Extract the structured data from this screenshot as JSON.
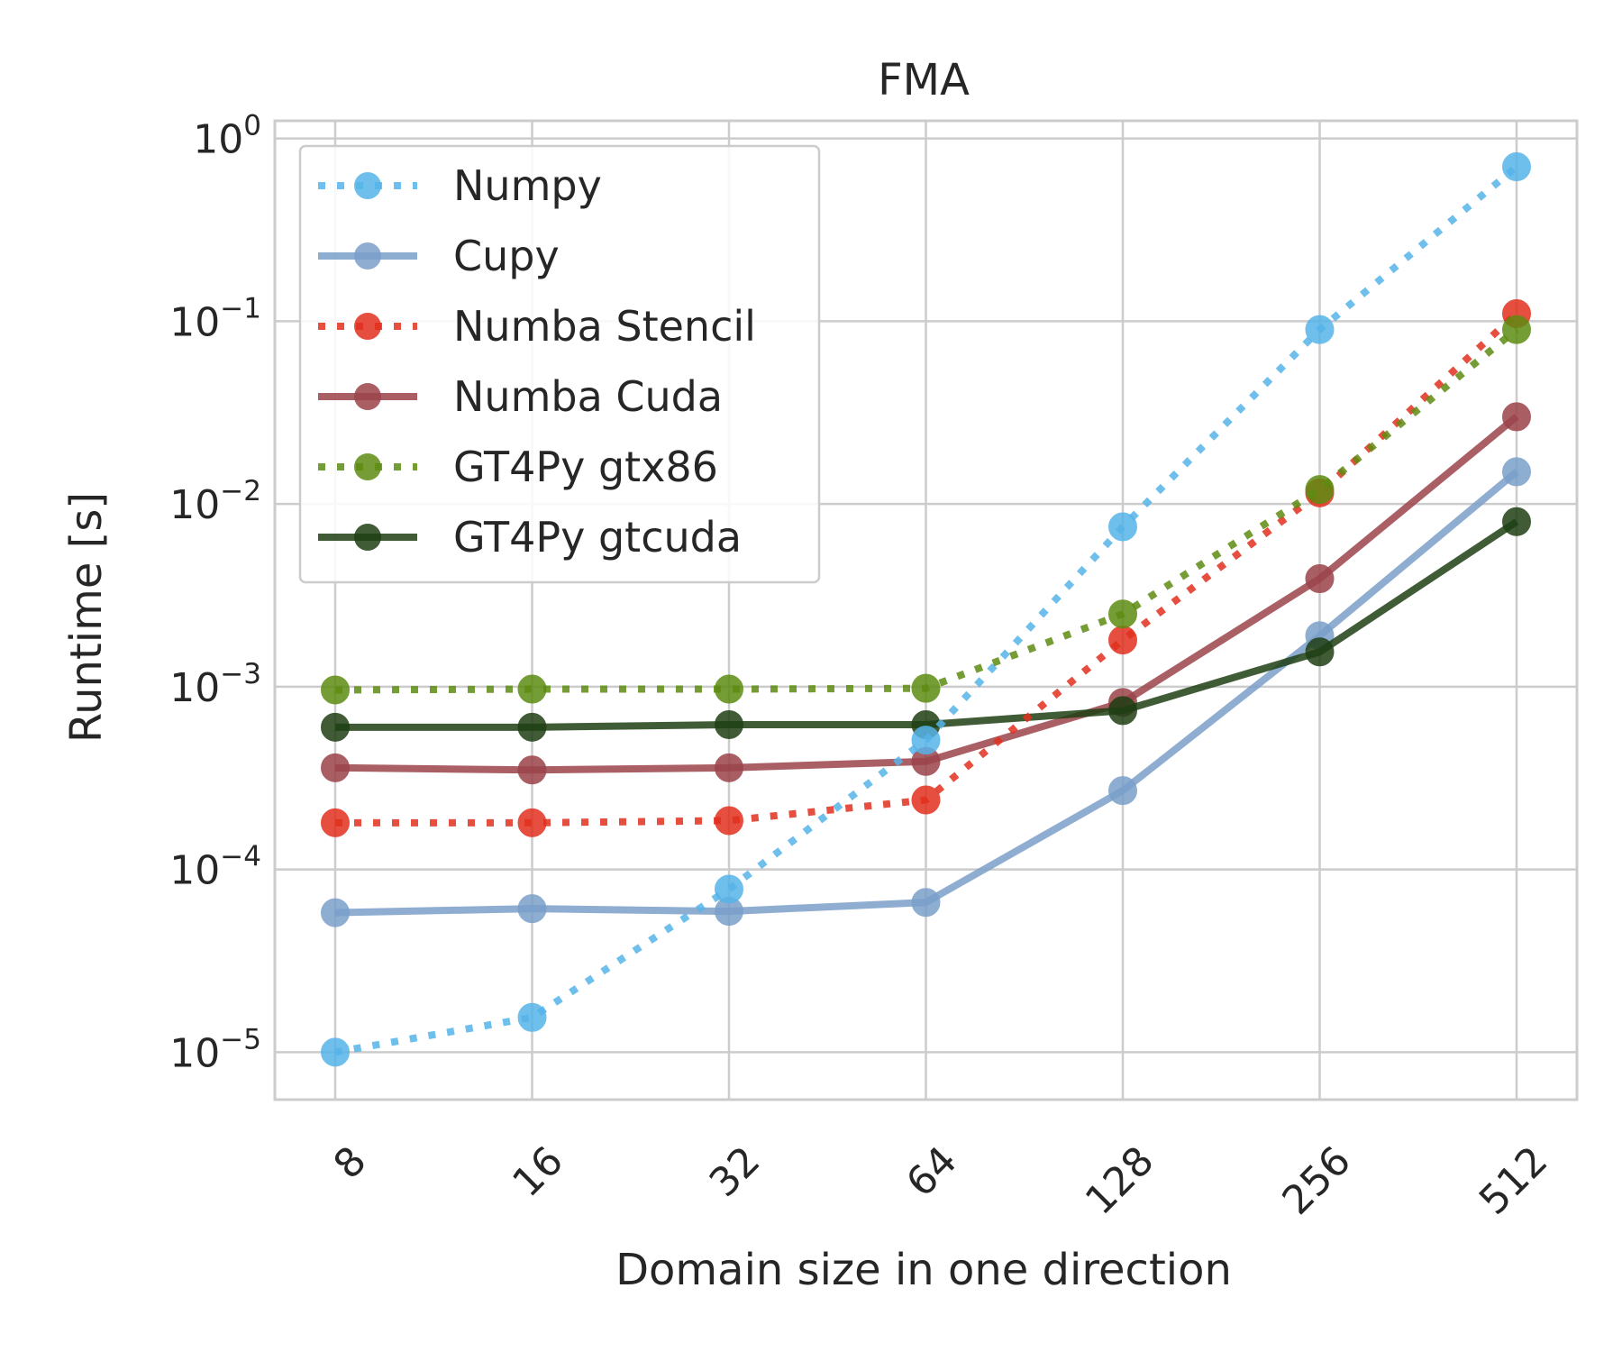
{
  "chart_data": {
    "type": "line",
    "title": "FMA",
    "xlabel": "Domain size in one direction",
    "ylabel": "Runtime [s]",
    "x_scale": "log2",
    "y_scale": "log10",
    "ylim": [
      5.5e-06,
      1.25
    ],
    "x": [
      8,
      16,
      32,
      64,
      128,
      256,
      512
    ],
    "x_tick_labels": [
      "8",
      "16",
      "32",
      "64",
      "128",
      "256",
      "512"
    ],
    "y_ticks": [
      {
        "base": "10",
        "exp": "−5",
        "value": 1e-05
      },
      {
        "base": "10",
        "exp": "−4",
        "value": 0.0001
      },
      {
        "base": "10",
        "exp": "−3",
        "value": 0.001
      },
      {
        "base": "10",
        "exp": "−2",
        "value": 0.01
      },
      {
        "base": "10",
        "exp": "−1",
        "value": 0.1
      },
      {
        "base": "10",
        "exp": "0",
        "value": 1
      }
    ],
    "grid": true,
    "legend_position": "upper-left",
    "series": [
      {
        "name": "Numpy",
        "color": "#56B4E9",
        "style": "dotted",
        "values": [
          1e-05,
          1.55e-05,
          7.8e-05,
          0.00051,
          0.0075,
          0.09,
          0.7
        ]
      },
      {
        "name": "Cupy",
        "color": "#7A9FC9",
        "style": "solid",
        "values": [
          5.8e-05,
          6.1e-05,
          5.9e-05,
          6.6e-05,
          0.00027,
          0.0019,
          0.015
        ]
      },
      {
        "name": "Numba Stencil",
        "color": "#E2301E",
        "style": "dotted",
        "values": [
          0.00018,
          0.00018,
          0.000185,
          0.00024,
          0.0018,
          0.0115,
          0.11
        ]
      },
      {
        "name": "Numba Cuda",
        "color": "#9B434A",
        "style": "solid",
        "values": [
          0.00036,
          0.00035,
          0.00036,
          0.00039,
          0.00082,
          0.0039,
          0.03
        ]
      },
      {
        "name": "GT4Py gtx86",
        "color": "#5E8C12",
        "style": "dotted",
        "values": [
          0.00096,
          0.00097,
          0.00097,
          0.00098,
          0.0025,
          0.012,
          0.09
        ]
      },
      {
        "name": "GT4Py gtcuda",
        "color": "#1F3F14",
        "style": "solid",
        "values": [
          0.0006,
          0.0006,
          0.00062,
          0.00062,
          0.00074,
          0.00155,
          0.008
        ]
      }
    ]
  }
}
